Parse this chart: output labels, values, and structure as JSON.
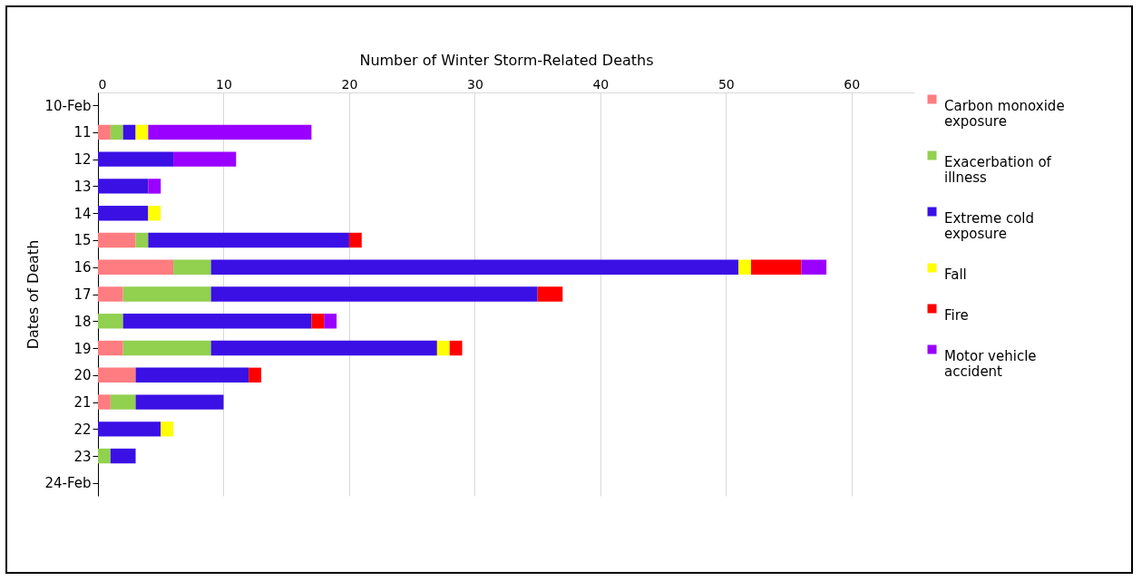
{
  "chart_data": {
    "type": "bar",
    "orientation": "horizontal",
    "stacked": true,
    "xlabel": "Number of Winter Storm-Related Deaths",
    "ylabel": "Dates of Death",
    "categories": [
      "10-Feb",
      "11",
      "12",
      "13",
      "14",
      "15",
      "16",
      "17",
      "18",
      "19",
      "20",
      "21",
      "22",
      "23",
      "24-Feb"
    ],
    "series": [
      {
        "name": "Carbon monoxide exposure",
        "color": "#ff7c80",
        "values": [
          0,
          1,
          0,
          0,
          0,
          3,
          6,
          2,
          0,
          2,
          3,
          1,
          0,
          0,
          0
        ]
      },
      {
        "name": "Exacerbation of illness",
        "color": "#92d050",
        "values": [
          0,
          1,
          0,
          0,
          0,
          1,
          3,
          7,
          2,
          7,
          0,
          2,
          0,
          1,
          0
        ]
      },
      {
        "name": "Extreme cold exposure",
        "color": "#3a10e5",
        "values": [
          0,
          1,
          6,
          4,
          4,
          16,
          42,
          26,
          15,
          18,
          9,
          7,
          5,
          2,
          0
        ]
      },
      {
        "name": "Fall",
        "color": "#ffff00",
        "values": [
          0,
          1,
          0,
          0,
          1,
          0,
          1,
          0,
          0,
          1,
          0,
          0,
          1,
          0,
          0
        ]
      },
      {
        "name": "Fire",
        "color": "#ff0000",
        "values": [
          0,
          0,
          0,
          0,
          0,
          1,
          4,
          2,
          1,
          1,
          1,
          0,
          0,
          0,
          0
        ]
      },
      {
        "name": "Motor vehicle accident",
        "color": "#9900ff",
        "values": [
          0,
          13,
          5,
          1,
          0,
          0,
          2,
          0,
          1,
          0,
          0,
          0,
          0,
          0,
          0
        ]
      }
    ],
    "xlim": [
      0,
      65
    ],
    "xticks": [
      0,
      10,
      20,
      30,
      40,
      50,
      60
    ],
    "grid": "x",
    "legend": "right"
  }
}
